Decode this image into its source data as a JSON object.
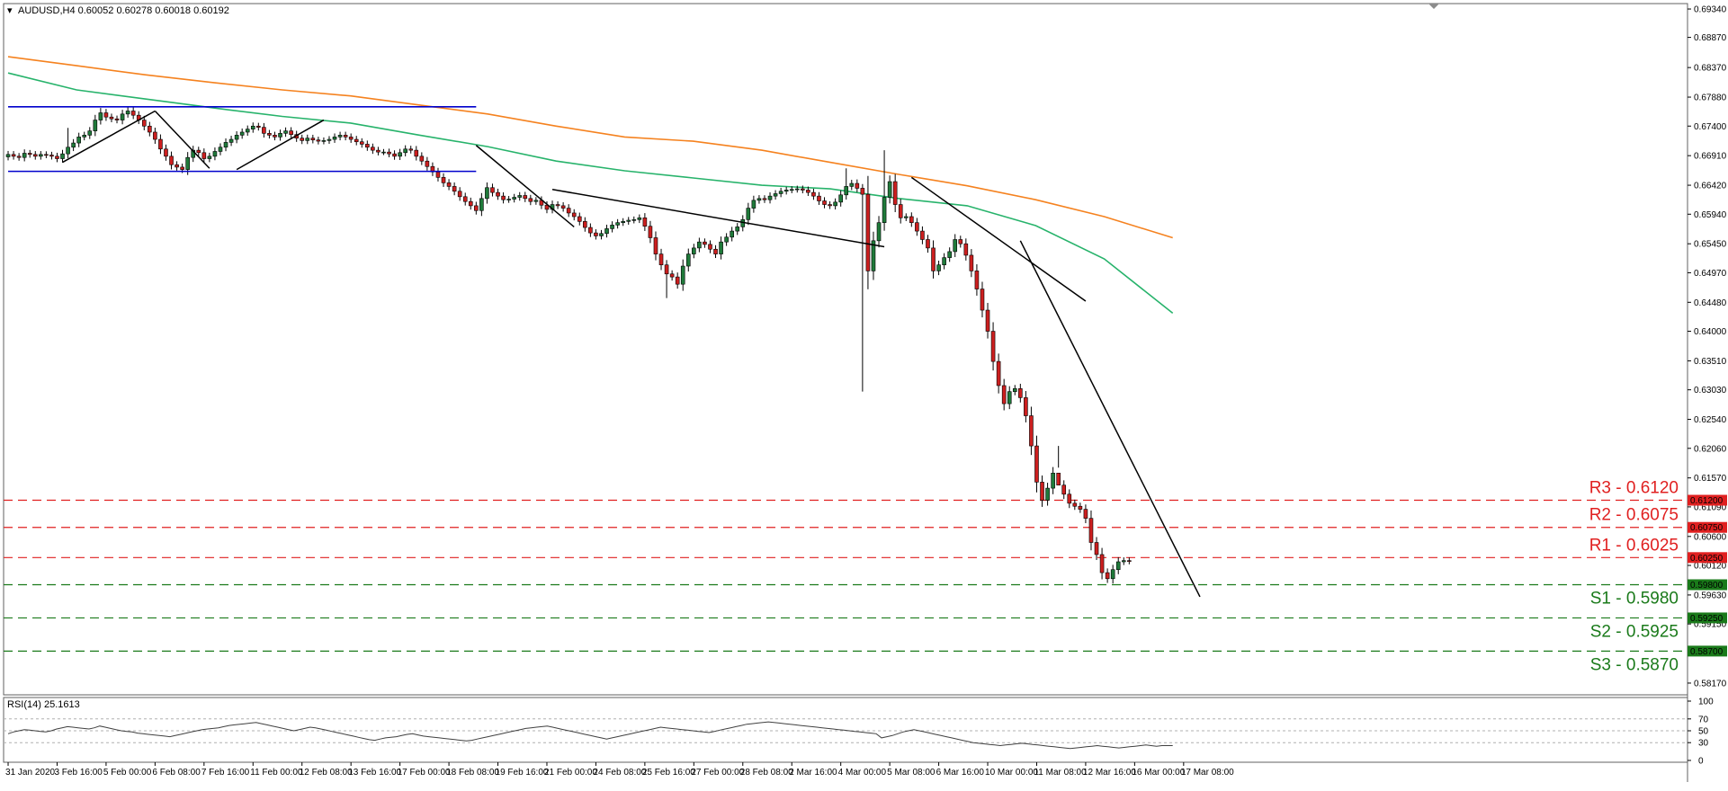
{
  "header": {
    "symbol_info": "AUDUSD,H4 0.60052 0.60278 0.60018 0.60192",
    "rsi_info": "RSI(14) 25.1613"
  },
  "colors": {
    "bull_candle": "#1f7a3a",
    "bear_candle": "#cc1f1f",
    "ma_orange": "#f5821f",
    "ma_green": "#27b36b",
    "trend_line": "#000000",
    "range_line": "#0000cc",
    "resistance": "#e02020",
    "support": "#1a7a1a",
    "rsi_line": "#404040"
  },
  "levels": {
    "resistance": [
      {
        "label": "R3 - 0.6120",
        "tag": "0.61200",
        "value": 0.612
      },
      {
        "label": "R2 - 0.6075",
        "tag": "0.60750",
        "value": 0.6075
      },
      {
        "label": "R1 - 0.6025",
        "tag": "0.60250",
        "value": 0.6025
      }
    ],
    "support": [
      {
        "label": "S1 - 0.5980",
        "tag": "0.59800",
        "value": 0.598
      },
      {
        "label": "S2 - 0.5925",
        "tag": "0.59250",
        "value": 0.5925
      },
      {
        "label": "S3 - 0.5870",
        "tag": "0.58700",
        "value": 0.587
      }
    ]
  },
  "price_axis_ticks": [
    "0.69340",
    "0.68870",
    "0.68370",
    "0.67880",
    "0.67400",
    "0.66910",
    "0.66420",
    "0.65940",
    "0.65450",
    "0.64970",
    "0.64480",
    "0.64000",
    "0.63510",
    "0.63030",
    "0.62540",
    "0.62060",
    "0.61570",
    "0.61090",
    "0.60600",
    "0.60120",
    "0.59630",
    "0.59150",
    "0.58670",
    "0.58170"
  ],
  "rsi_axis_ticks": [
    "100",
    "70",
    "50",
    "30",
    "0"
  ],
  "time_axis_labels": [
    "31 Jan 2020",
    "3 Feb 16:00",
    "5 Feb 00:00",
    "6 Feb 08:00",
    "7 Feb 16:00",
    "11 Feb 00:00",
    "12 Feb 08:00",
    "13 Feb 16:00",
    "17 Feb 00:00",
    "18 Feb 08:00",
    "19 Feb 16:00",
    "21 Feb 00:00",
    "24 Feb 08:00",
    "25 Feb 16:00",
    "27 Feb 00:00",
    "28 Feb 08:00",
    "2 Mar 16:00",
    "4 Mar 00:00",
    "5 Mar 08:00",
    "6 Mar 16:00",
    "10 Mar 00:00",
    "11 Mar 08:00",
    "12 Mar 16:00",
    "16 Mar 00:00",
    "17 Mar 08:00"
  ],
  "chart_data": {
    "type": "candlestick",
    "symbol": "AUDUSD",
    "timeframe": "H4",
    "ylim": [
      0.5805,
      0.694
    ],
    "closes": [
      0.6693,
      0.669,
      0.6688,
      0.6695,
      0.6693,
      0.669,
      0.6693,
      0.6692,
      0.669,
      0.6686,
      0.6694,
      0.6705,
      0.6712,
      0.6722,
      0.6725,
      0.6732,
      0.675,
      0.6762,
      0.6755,
      0.6752,
      0.675,
      0.676,
      0.6765,
      0.6758,
      0.675,
      0.674,
      0.673,
      0.6718,
      0.6702,
      0.669,
      0.6676,
      0.6672,
      0.6668,
      0.6688,
      0.67,
      0.6696,
      0.6686,
      0.669,
      0.6698,
      0.6705,
      0.6713,
      0.6718,
      0.6725,
      0.673,
      0.6735,
      0.674,
      0.6738,
      0.6728,
      0.6725,
      0.6722,
      0.6728,
      0.6732,
      0.6726,
      0.672,
      0.6716,
      0.672,
      0.6717,
      0.6715,
      0.6716,
      0.6718,
      0.6722,
      0.6725,
      0.6722,
      0.6718,
      0.6714,
      0.671,
      0.6705,
      0.67,
      0.6697,
      0.6697,
      0.6694,
      0.669,
      0.6696,
      0.6702,
      0.67,
      0.669,
      0.6682,
      0.6673,
      0.6664,
      0.6655,
      0.6646,
      0.664,
      0.6632,
      0.6623,
      0.6615,
      0.6608,
      0.66,
      0.662,
      0.6638,
      0.663,
      0.6624,
      0.6618,
      0.6619,
      0.6622,
      0.6625,
      0.662,
      0.6615,
      0.6617,
      0.6609,
      0.6602,
      0.661,
      0.6608,
      0.6604,
      0.6596,
      0.659,
      0.6582,
      0.6572,
      0.6563,
      0.6558,
      0.6562,
      0.657,
      0.6576,
      0.658,
      0.6582,
      0.6584,
      0.6585,
      0.6588,
      0.6574,
      0.6555,
      0.6528,
      0.651,
      0.6495,
      0.649,
      0.6478,
      0.6508,
      0.6528,
      0.6538,
      0.6548,
      0.6544,
      0.6536,
      0.6528,
      0.6548,
      0.6556,
      0.6566,
      0.6573,
      0.6585,
      0.6604,
      0.6617,
      0.662,
      0.6618,
      0.6624,
      0.6628,
      0.6632,
      0.6634,
      0.6635,
      0.6636,
      0.6634,
      0.663,
      0.6624,
      0.6616,
      0.661,
      0.6608,
      0.6614,
      0.6626,
      0.664,
      0.6645,
      0.6637,
      0.6627,
      0.65,
      0.655,
      0.658,
      0.6622,
      0.6648,
      0.661,
      0.6588,
      0.659,
      0.658,
      0.6566,
      0.6552,
      0.6538,
      0.65,
      0.651,
      0.6522,
      0.6532,
      0.6552,
      0.6545,
      0.6526,
      0.65,
      0.647,
      0.6435,
      0.64,
      0.635,
      0.631,
      0.628,
      0.63,
      0.6305,
      0.629,
      0.626,
      0.621,
      0.615,
      0.612,
      0.614,
      0.6165,
      0.6145,
      0.613,
      0.6115,
      0.611,
      0.6105,
      0.609,
      0.605,
      0.603,
      0.6,
      0.599,
      0.6005,
      0.6018,
      0.602,
      0.6019
    ],
    "wicks": [
      {
        "index": 11,
        "high": 0.6737
      },
      {
        "index": 17,
        "high": 0.677
      },
      {
        "index": 121,
        "low": 0.6455
      },
      {
        "index": 154,
        "high": 0.667
      },
      {
        "index": 157,
        "low": 0.63
      },
      {
        "index": 161,
        "high": 0.67
      },
      {
        "index": 193,
        "low": 0.621
      },
      {
        "index": 211,
        "low": 0.5965
      }
    ],
    "moving_averages": [
      {
        "color_key": "ma_orange",
        "values": [
          0.6855,
          0.684,
          0.6825,
          0.6812,
          0.68,
          0.679,
          0.6775,
          0.676,
          0.674,
          0.6722,
          0.6715,
          0.67,
          0.668,
          0.666,
          0.6641,
          0.6618,
          0.659,
          0.6555
        ]
      },
      {
        "color_key": "ma_green",
        "values": [
          0.6828,
          0.68,
          0.6785,
          0.677,
          0.6756,
          0.6745,
          0.6725,
          0.6706,
          0.6682,
          0.6666,
          0.6654,
          0.6642,
          0.6636,
          0.662,
          0.6608,
          0.6575,
          0.652,
          0.643
        ]
      }
    ],
    "trend_lines": [
      {
        "color_key": "range_line",
        "from": [
          0,
          0.6772
        ],
        "to": [
          86,
          0.6772
        ]
      },
      {
        "color_key": "range_line",
        "from": [
          0,
          0.6665
        ],
        "to": [
          86,
          0.6665
        ]
      },
      {
        "color_key": "trend_line",
        "from": [
          10,
          0.668
        ],
        "to": [
          27,
          0.6765
        ]
      },
      {
        "color_key": "trend_line",
        "from": [
          27,
          0.6765
        ],
        "to": [
          37,
          0.667
        ]
      },
      {
        "color_key": "trend_line",
        "from": [
          42,
          0.6668
        ],
        "to": [
          58,
          0.675
        ]
      },
      {
        "color_key": "trend_line",
        "from": [
          86,
          0.6708
        ],
        "to": [
          104,
          0.6573
        ]
      },
      {
        "color_key": "trend_line",
        "from": [
          100,
          0.6635
        ],
        "to": [
          161,
          0.654
        ]
      },
      {
        "color_key": "trend_line",
        "from": [
          166,
          0.6655
        ],
        "to": [
          198,
          0.645
        ]
      },
      {
        "color_key": "trend_line",
        "from": [
          186,
          0.655
        ],
        "to": [
          219,
          0.596
        ]
      }
    ],
    "rsi": {
      "ylim": [
        0,
        100
      ],
      "values": [
        45,
        48,
        50,
        52,
        51,
        50,
        49,
        48,
        50,
        53,
        55,
        57,
        56,
        55,
        54,
        53,
        55,
        58,
        56,
        54,
        52,
        50,
        49,
        48,
        46,
        45,
        44,
        43,
        42,
        41,
        40,
        42,
        44,
        46,
        48,
        50,
        52,
        53,
        54,
        55,
        57,
        59,
        60,
        61,
        62,
        63,
        64,
        62,
        60,
        58,
        56,
        54,
        52,
        50,
        52,
        54,
        56,
        55,
        53,
        51,
        49,
        47,
        45,
        43,
        41,
        39,
        37,
        35,
        34,
        36,
        38,
        39,
        40,
        42,
        44,
        45,
        43,
        41,
        40,
        39,
        38,
        37,
        36,
        35,
        34,
        33,
        34,
        36,
        38,
        40,
        42,
        44,
        46,
        48,
        50,
        52,
        54,
        55,
        56,
        57,
        58,
        56,
        54,
        52,
        50,
        48,
        46,
        44,
        42,
        40,
        38,
        36,
        38,
        40,
        42,
        44,
        46,
        48,
        50,
        52,
        54,
        56,
        55,
        54,
        53,
        52,
        51,
        50,
        49,
        48,
        47,
        49,
        51,
        53,
        55,
        57,
        59,
        61,
        62,
        63,
        64,
        65,
        64,
        63,
        62,
        61,
        60,
        59,
        58,
        57,
        56,
        55,
        54,
        53,
        52,
        51,
        50,
        49,
        48,
        47,
        46,
        45,
        38,
        40,
        42,
        45,
        48,
        50,
        52,
        50,
        48,
        46,
        44,
        42,
        40,
        38,
        36,
        34,
        32,
        30,
        29,
        28,
        27,
        26,
        25,
        26,
        27,
        28,
        29,
        28,
        27,
        26,
        25,
        24,
        23,
        22,
        21,
        20,
        21,
        22,
        23,
        24,
        25,
        24,
        23,
        22,
        21,
        22,
        23,
        24,
        25,
        26,
        25,
        24,
        25,
        25,
        25
      ]
    }
  }
}
